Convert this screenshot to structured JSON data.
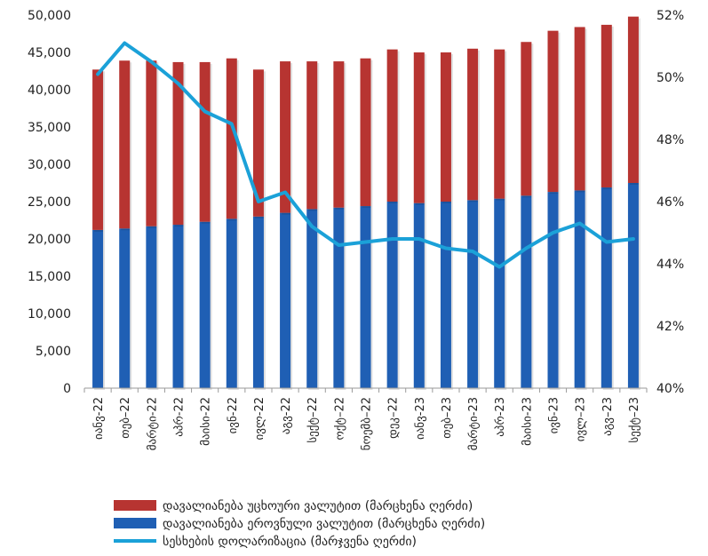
{
  "chart_data": {
    "type": "bar",
    "stacked": true,
    "categories": [
      "იანვ-22",
      "თებ–22",
      "მარტი-22",
      "აპრ-22",
      "მაისი-22",
      "ივნ-22",
      "ივლ-22",
      "აგვ-22",
      "სექტ–22",
      "ოქტ–22",
      "ნოემბ–22",
      "დეკ–22",
      "იანვ-23",
      "თებ–23",
      "მარტი-23",
      "აპრ-23",
      "მაისი-23",
      "ივნ-23",
      "ივლ–23",
      "აგვ–23",
      "სექტ–23"
    ],
    "series": [
      {
        "name": "დავალიანება ეროვნული ვალუტით (მარცხენა ღერძი)",
        "kind": "bar",
        "axis": "left",
        "color": "#1f5fb4",
        "values": [
          21200,
          21400,
          21700,
          21900,
          22300,
          22700,
          23000,
          23500,
          24000,
          24200,
          24400,
          25000,
          24800,
          25000,
          25200,
          25400,
          25800,
          26300,
          26500,
          26900,
          27500
        ]
      },
      {
        "name": "დავალიანება უცხოური ვალუტით (მარცხენა ღერძი)",
        "kind": "bar",
        "axis": "left",
        "color": "#b73431",
        "values": [
          21500,
          22500,
          22200,
          21800,
          21400,
          21500,
          19700,
          20300,
          19800,
          19600,
          19800,
          20400,
          20200,
          20000,
          20300,
          20000,
          20600,
          21600,
          21900,
          21800,
          22300
        ]
      },
      {
        "name": "სესხების დოლარიზაცია (მარჯვენა ღერძი)",
        "kind": "line",
        "axis": "right",
        "color": "#1ba1d8",
        "values": [
          50.1,
          51.1,
          50.5,
          49.8,
          48.9,
          48.5,
          46.0,
          46.3,
          45.2,
          44.6,
          44.7,
          44.8,
          44.8,
          44.5,
          44.4,
          43.9,
          44.5,
          45.0,
          45.3,
          44.7,
          44.8
        ]
      }
    ],
    "y_left": {
      "min": 0,
      "max": 50000,
      "step": 5000,
      "ticks": [
        "0",
        "5,000",
        "10,000",
        "15,000",
        "20,000",
        "25,000",
        "30,000",
        "35,000",
        "40,000",
        "45,000",
        "50,000"
      ]
    },
    "y_right": {
      "min": 40,
      "max": 52,
      "step": 2,
      "ticks": [
        "40%",
        "42%",
        "44%",
        "46%",
        "48%",
        "50%",
        "52%"
      ]
    },
    "grid": false,
    "legend_position": "bottom",
    "legend": [
      {
        "label": "დავალიანება უცხოური ვალუტით (მარცხენა ღერძი)",
        "color": "#b73431",
        "kind": "bar"
      },
      {
        "label": "დავალიანება ეროვნული ვალუტით (მარცხენა ღერძი)",
        "color": "#1f5fb4",
        "kind": "bar"
      },
      {
        "label": "სესხების დოლარიზაცია (მარჯვენა ღერძი)",
        "color": "#1ba1d8",
        "kind": "line"
      }
    ]
  }
}
